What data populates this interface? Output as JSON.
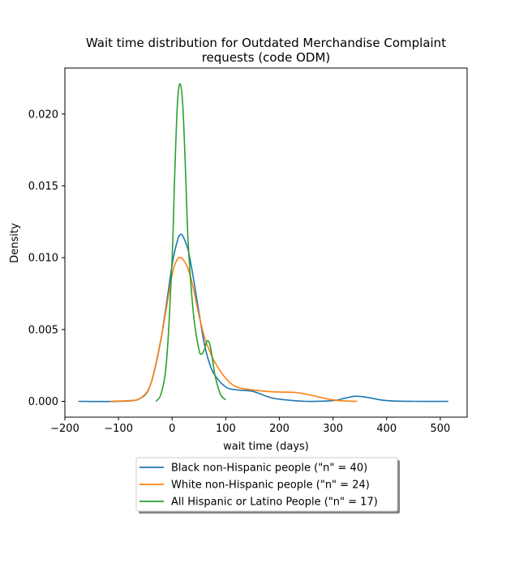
{
  "chart_data": {
    "type": "line",
    "title_lines": [
      "Wait time distribution  for Outdated Merchandise Complaint",
      "requests (code ODM)"
    ],
    "xlabel": "wait time (days)",
    "ylabel": "Density",
    "xlim": [
      -200,
      550
    ],
    "ylim": [
      -0.0011,
      0.0232
    ],
    "xticks": [
      -200,
      -100,
      0,
      100,
      200,
      300,
      400,
      500
    ],
    "xtick_labels": [
      "−200",
      "−100",
      "0",
      "100",
      "200",
      "300",
      "400",
      "500"
    ],
    "yticks": [
      0.0,
      0.005,
      0.01,
      0.015,
      0.02
    ],
    "ytick_labels": [
      "0.000",
      "0.005",
      "0.010",
      "0.015",
      "0.020"
    ],
    "legend_position": "below-center",
    "grid": false,
    "series": [
      {
        "name": "Black non-Hispanic people (\"n\" = 40)",
        "color": "#1f77b4",
        "x": [
          -175,
          -100,
          -60,
          -40,
          -20,
          0,
          10,
          15,
          20,
          30,
          40,
          50,
          60,
          70,
          80,
          100,
          120,
          150,
          180,
          200,
          250,
          300,
          320,
          340,
          360,
          400,
          450,
          515
        ],
        "y": [
          0.0,
          0.0,
          0.0002,
          0.0012,
          0.0045,
          0.0095,
          0.0112,
          0.0116,
          0.0115,
          0.0105,
          0.0085,
          0.0062,
          0.004,
          0.0026,
          0.0018,
          0.001,
          0.0008,
          0.0007,
          0.0003,
          0.00015,
          0.0,
          5e-05,
          0.0002,
          0.00035,
          0.0003,
          5e-05,
          0.0,
          0.0
        ]
      },
      {
        "name": "White non-Hispanic people (\"n\" = 24)",
        "color": "#ff7f0e",
        "x": [
          -115,
          -80,
          -60,
          -40,
          -20,
          0,
          10,
          15,
          20,
          30,
          40,
          50,
          60,
          70,
          80,
          100,
          120,
          150,
          180,
          200,
          230,
          250,
          280,
          300,
          320,
          345
        ],
        "y": [
          0.0,
          5e-05,
          0.0002,
          0.0012,
          0.0045,
          0.0088,
          0.0099,
          0.01,
          0.0099,
          0.0092,
          0.0078,
          0.006,
          0.0045,
          0.0035,
          0.0027,
          0.0016,
          0.001,
          0.0008,
          0.00068,
          0.00065,
          0.00062,
          0.0005,
          0.00025,
          0.0001,
          3e-05,
          0.0
        ]
      },
      {
        "name": "All Hispanic or Latino People (\"n\" = 17)",
        "color": "#2ca02c",
        "x": [
          -30,
          -20,
          -10,
          0,
          5,
          10,
          15,
          20,
          25,
          30,
          40,
          50,
          55,
          60,
          65,
          70,
          75,
          80,
          90,
          100
        ],
        "y": [
          0.0,
          0.0006,
          0.003,
          0.01,
          0.016,
          0.0208,
          0.0221,
          0.0205,
          0.016,
          0.011,
          0.006,
          0.0036,
          0.0033,
          0.0036,
          0.0042,
          0.004,
          0.003,
          0.0018,
          0.0005,
          0.0001
        ]
      }
    ]
  }
}
